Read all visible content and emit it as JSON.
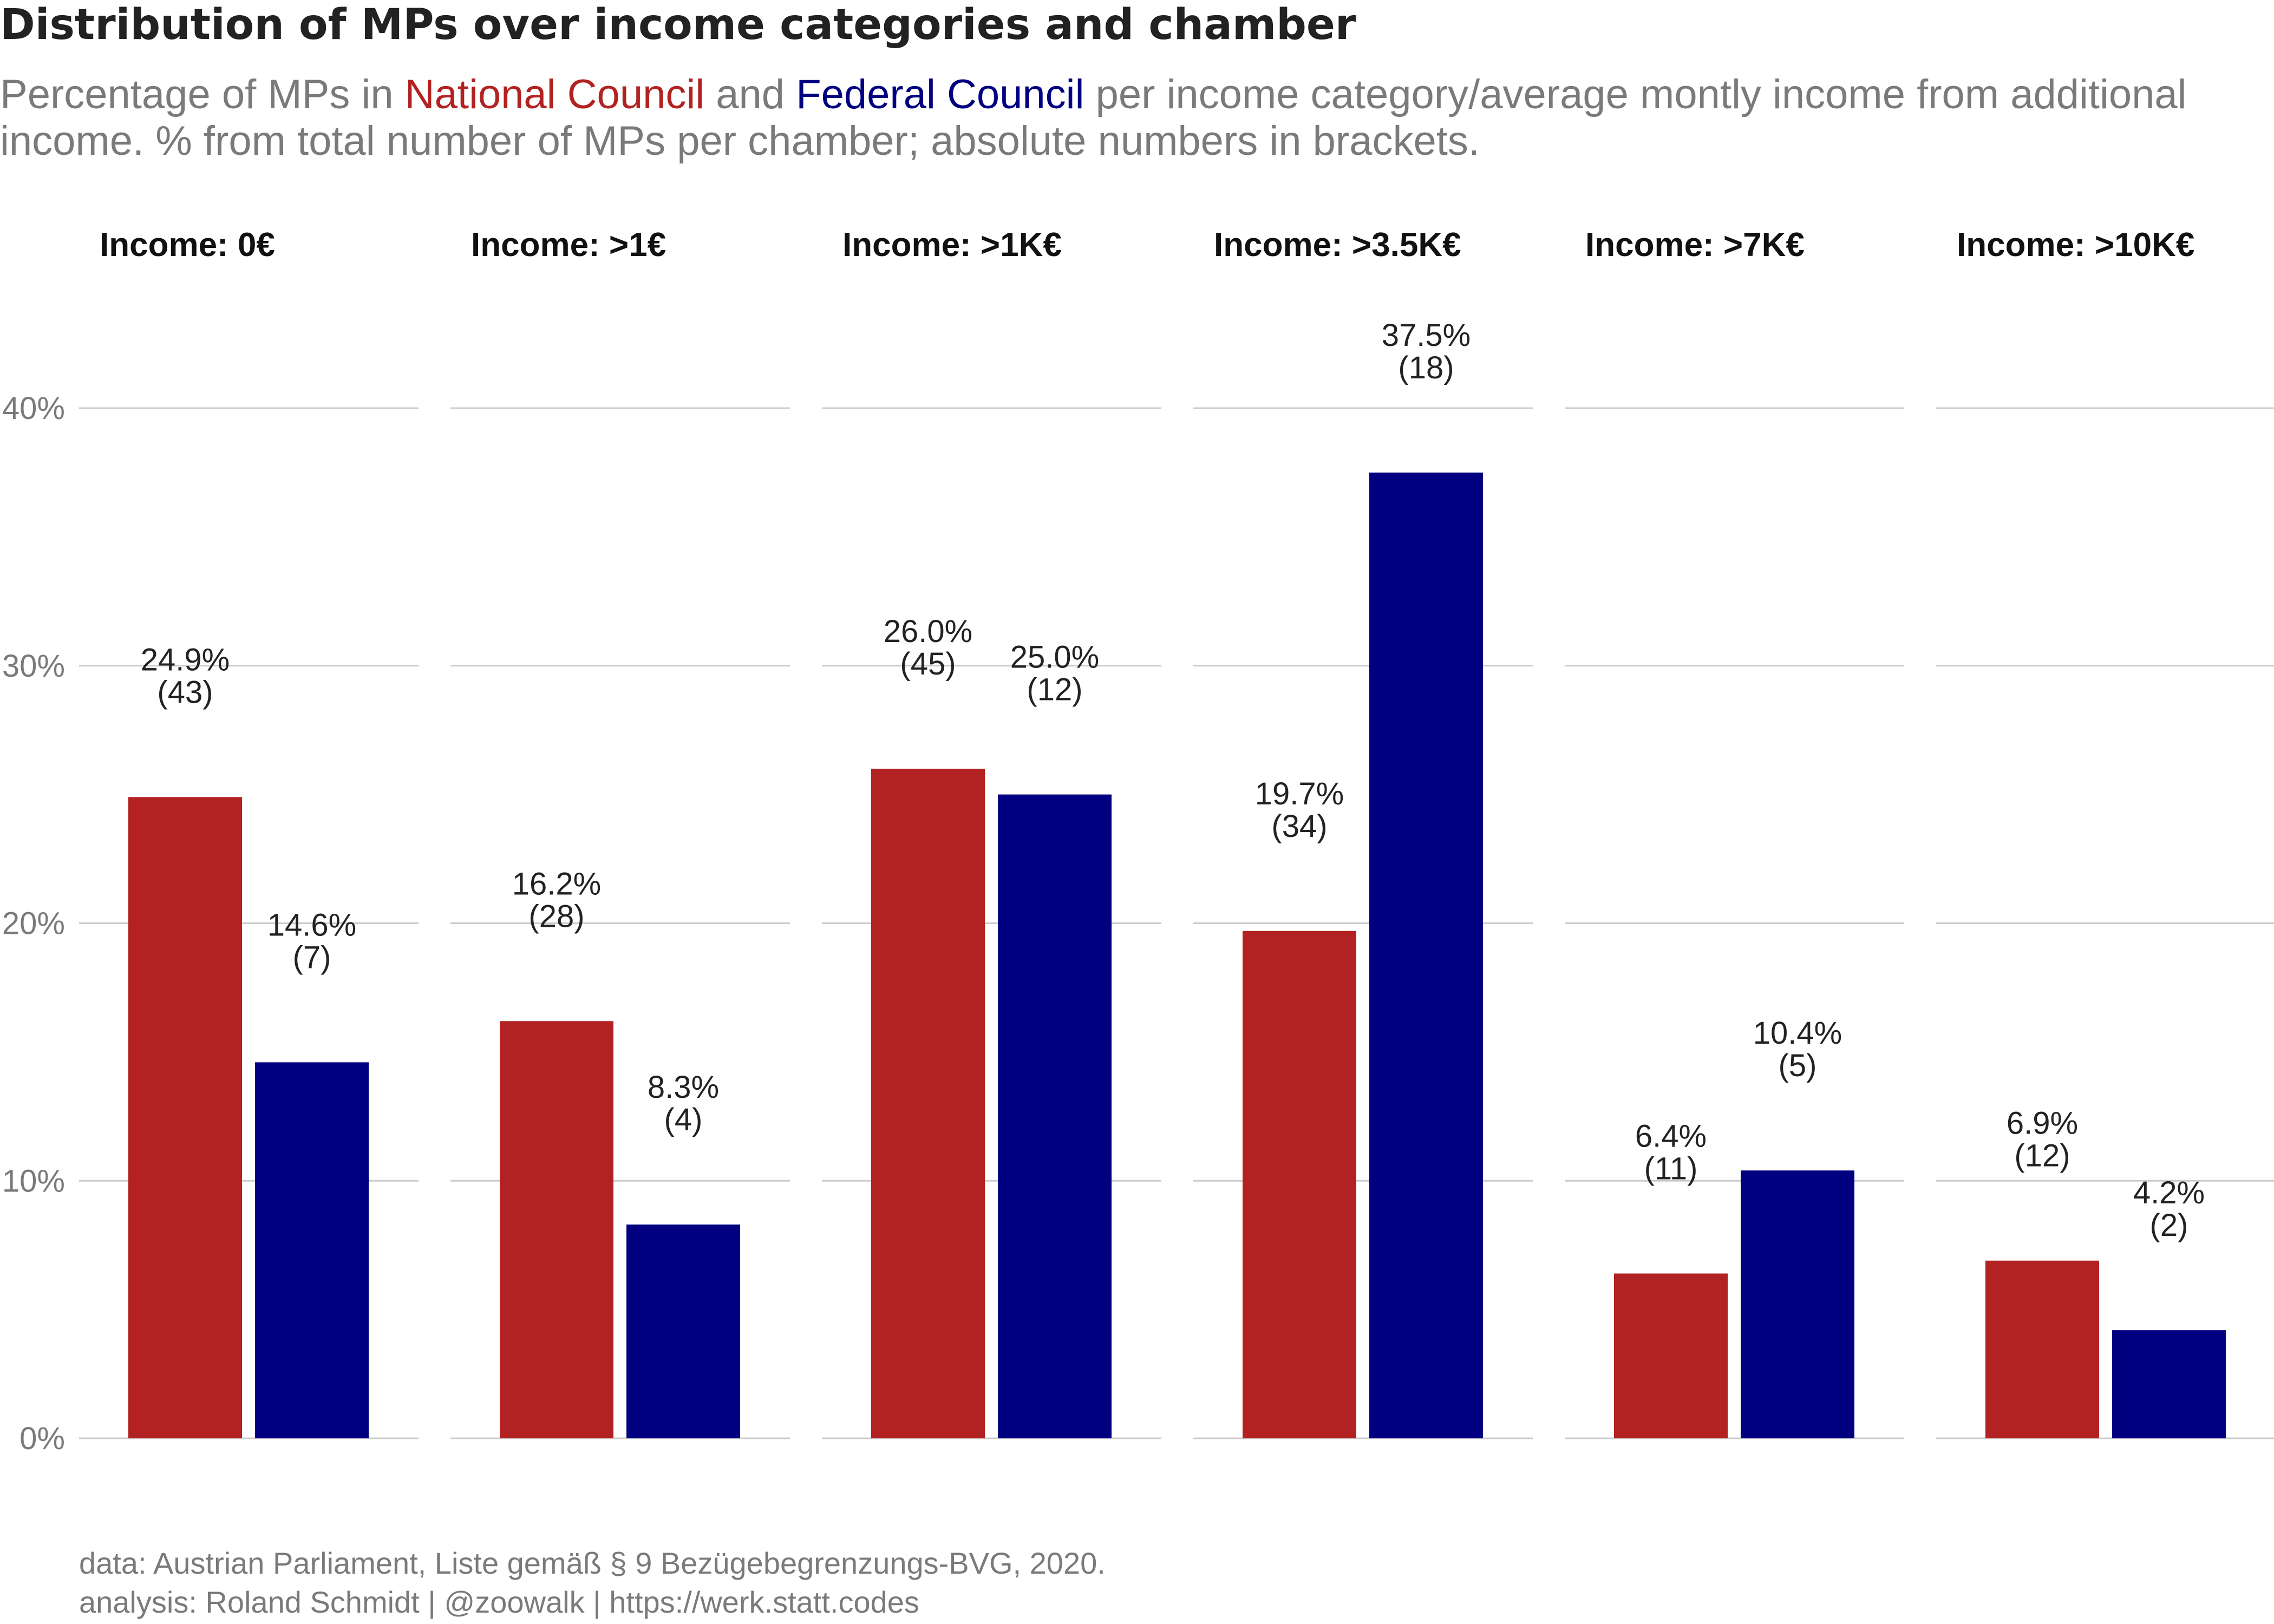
{
  "title": "Distribution of MPs over income categories and chamber",
  "subtitle": {
    "prefix": "Percentage of MPs in ",
    "national": "National Council",
    "mid": " and ",
    "federal": "Federal Council",
    "suffix": " per income category/average montly income from additional income. % from total number of MPs per chamber; absolute numbers in brackets."
  },
  "caption": {
    "line1": "data: Austrian Parliament, Liste gemäß § 9 Bezügebegrenzungs-BVG, 2020.",
    "line2": "analysis: Roland Schmidt | @zoowalk | https://werk.statt.codes"
  },
  "colors": {
    "national": "#b22222",
    "federal": "#000080",
    "grid": "#cccccc"
  },
  "chart_data": {
    "type": "bar",
    "facets": [
      "Income: 0€",
      "Income: >1€",
      "Income: >1K€",
      "Income: >3.5K€",
      "Income: >7K€",
      "Income: >10K€"
    ],
    "series": [
      {
        "name": "National Council",
        "color": "#b22222",
        "values": [
          24.9,
          16.2,
          26.0,
          19.7,
          6.4,
          6.9
        ],
        "labels": [
          "24.9%",
          "16.2%",
          "26.0%",
          "19.7%",
          "6.4%",
          "6.9%"
        ],
        "counts": [
          "(43)",
          "(28)",
          "(45)",
          "(34)",
          "(11)",
          "(12)"
        ]
      },
      {
        "name": "Federal Council",
        "color": "#000080",
        "values": [
          14.6,
          8.3,
          25.0,
          37.5,
          10.4,
          4.2
        ],
        "labels": [
          "14.6%",
          "8.3%",
          "25.0%",
          "37.5%",
          "10.4%",
          "4.2%"
        ],
        "counts": [
          "(7)",
          "(4)",
          "(12)",
          "(18)",
          "(5)",
          "(2)"
        ]
      }
    ],
    "yticks": [
      0,
      10,
      20,
      30,
      40
    ],
    "ytick_labels": [
      "0%",
      "10%",
      "20%",
      "30%",
      "40%"
    ],
    "ylim": [
      0,
      40
    ],
    "grid": true,
    "legend": "none"
  }
}
